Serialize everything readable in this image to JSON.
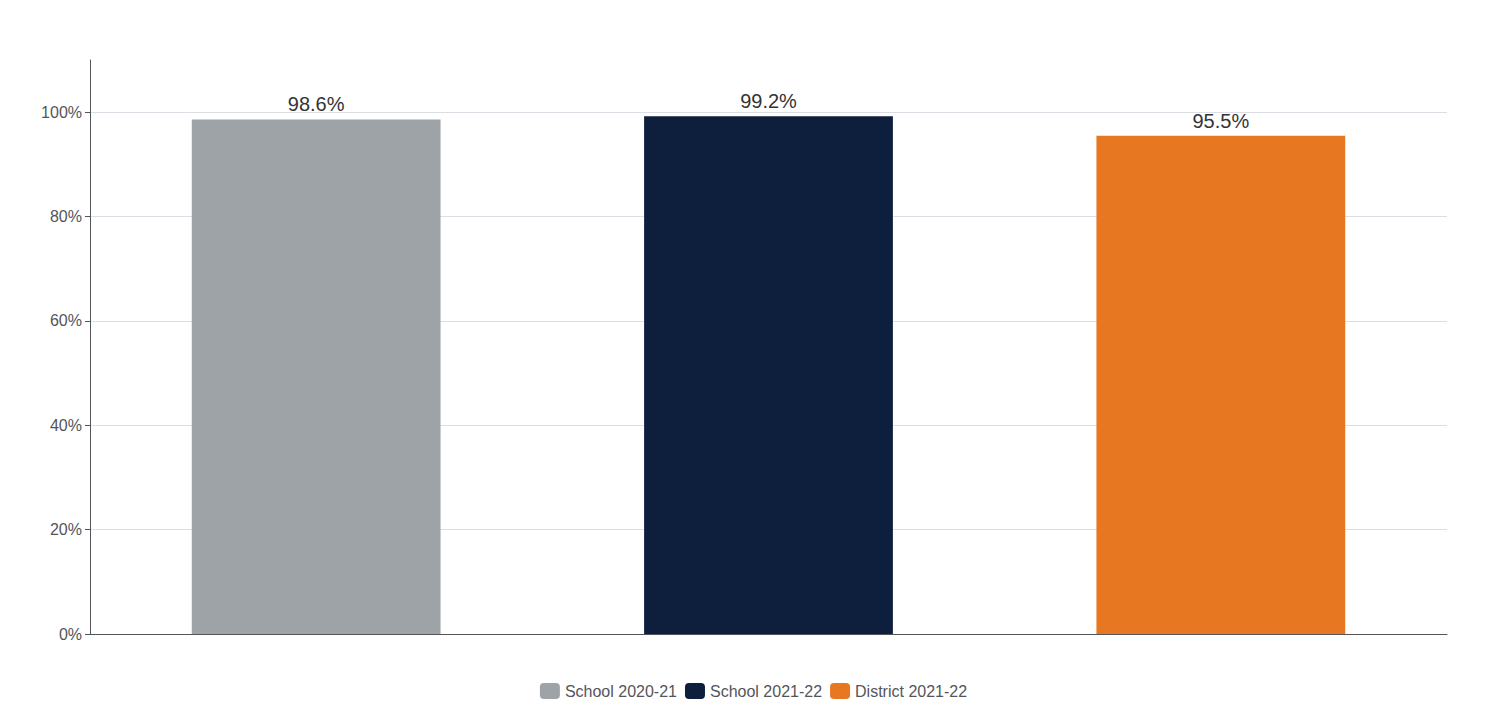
{
  "chart_data": {
    "type": "bar",
    "categories": [
      "School 2020-21",
      "School 2021-22",
      "District 2021-22"
    ],
    "values": [
      98.6,
      99.2,
      95.5
    ],
    "value_labels": [
      "98.6%",
      "99.2%",
      "95.5%"
    ],
    "colors": [
      "#9EA3A8",
      "#0D1F3C",
      "#E87722"
    ],
    "ylim": [
      0,
      110
    ],
    "yticks": [
      {
        "value": 0,
        "label": "0%"
      },
      {
        "value": 20,
        "label": "20%"
      },
      {
        "value": 40,
        "label": "40%"
      },
      {
        "value": 60,
        "label": "60%"
      },
      {
        "value": 80,
        "label": "80%"
      },
      {
        "value": 100,
        "label": "100%"
      }
    ],
    "grid": true,
    "legend": "bottom",
    "data_labels": true,
    "tick_labels": "y"
  }
}
